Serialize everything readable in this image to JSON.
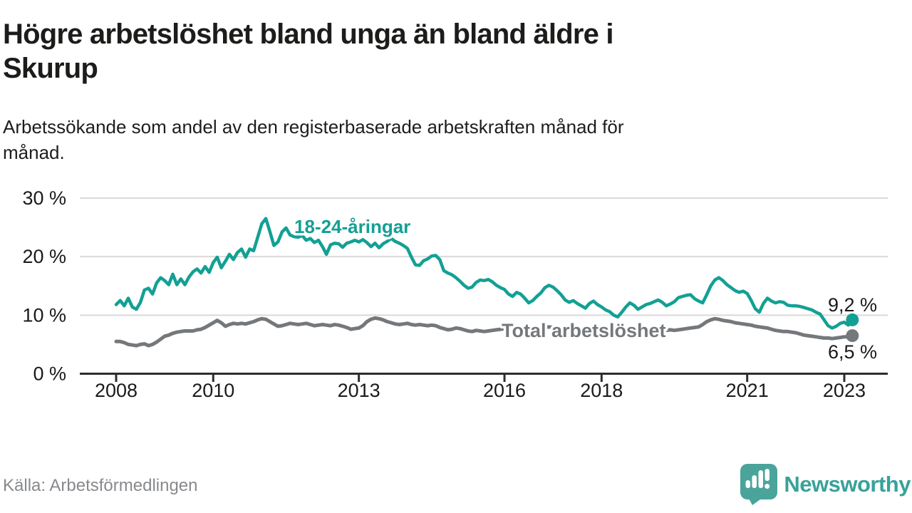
{
  "header": {
    "title": "Högre arbetslöshet bland unga än bland äldre i Skurup",
    "title_lines": [
      "Högre arbetslöshet bland unga än bland äldre i",
      "Skurup"
    ],
    "subtitle": "Arbetssökande som andel av den registerbaserade arbetskraften månad för månad.",
    "subtitle_lines": [
      "Arbetssökande som andel av den registerbaserade arbetskraften månad för",
      "månad."
    ]
  },
  "footer": {
    "source": "Källa: Arbetsförmedlingen",
    "brand": "Newsworthy"
  },
  "colors": {
    "youth_line": "#13a094",
    "total_line": "#75787b",
    "grid": "#d9d9d9",
    "axis": "#2d2d2d",
    "text": "#1a1a1a",
    "muted_text": "#87898c",
    "brand_teal": "#38a29a",
    "logo_bubble": "#4aa49c"
  },
  "chart_data": {
    "type": "line",
    "title": "Högre arbetslöshet bland unga än bland äldre i Skurup",
    "subtitle": "Arbetssökande som andel av den registerbaserade arbetskraften månad för månad.",
    "xlabel": "",
    "ylabel": "",
    "grid": "horizontal",
    "legend_position": "inline-labels",
    "ylim": [
      0,
      30
    ],
    "xlim": [
      2007.25,
      2023.9
    ],
    "yticks": [
      {
        "value": 0,
        "label": "0 %"
      },
      {
        "value": 10,
        "label": "10 %"
      },
      {
        "value": 20,
        "label": "20 %"
      },
      {
        "value": 30,
        "label": "30 %"
      }
    ],
    "xticks": [
      {
        "value": 2008,
        "label": "2008"
      },
      {
        "value": 2010,
        "label": "2010"
      },
      {
        "value": 2013,
        "label": "2013"
      },
      {
        "value": 2016,
        "label": "2016"
      },
      {
        "value": 2018,
        "label": "2018"
      },
      {
        "value": 2021,
        "label": "2021"
      },
      {
        "value": 2023,
        "label": "2023"
      }
    ],
    "series": [
      {
        "name": "18-24-åringar",
        "color": "#13a094",
        "end_label": "9,2 %",
        "end_value": 9.2,
        "start_year": 2008,
        "monthly": true,
        "values": [
          11.8,
          12.5,
          11.6,
          12.9,
          11.4,
          11.0,
          12.2,
          14.3,
          14.6,
          13.6,
          15.5,
          16.4,
          15.9,
          15.2,
          17.0,
          15.2,
          16.2,
          15.2,
          16.5,
          17.4,
          17.9,
          17.2,
          18.3,
          17.3,
          19.0,
          19.9,
          18.1,
          19.2,
          20.4,
          19.5,
          20.7,
          21.3,
          19.9,
          21.3,
          21.0,
          23.3,
          25.6,
          26.5,
          24.3,
          21.9,
          22.5,
          24.2,
          24.9,
          23.7,
          23.4,
          23.3,
          23.6,
          22.8,
          23.1,
          22.4,
          22.8,
          21.7,
          20.4,
          22.0,
          22.3,
          22.2,
          21.6,
          22.3,
          22.5,
          22.8,
          22.5,
          22.9,
          22.4,
          21.7,
          22.3,
          21.5,
          22.2,
          22.6,
          23.1,
          22.6,
          22.3,
          21.9,
          21.4,
          19.9,
          18.6,
          18.5,
          19.3,
          19.6,
          20.1,
          20.2,
          19.5,
          17.6,
          17.2,
          16.9,
          16.4,
          15.8,
          15.1,
          14.6,
          14.8,
          15.6,
          16.0,
          15.9,
          16.1,
          15.7,
          15.1,
          14.7,
          14.4,
          13.6,
          13.2,
          13.9,
          13.6,
          12.9,
          12.1,
          12.5,
          13.2,
          13.8,
          14.7,
          15.1,
          14.8,
          14.2,
          13.5,
          12.6,
          12.2,
          12.5,
          12.0,
          11.6,
          11.2,
          12.0,
          12.4,
          11.8,
          11.4,
          10.9,
          10.6,
          10.0,
          9.7,
          10.5,
          11.4,
          12.1,
          11.7,
          11.0,
          11.4,
          11.8,
          12.0,
          12.3,
          12.6,
          12.2,
          11.6,
          11.9,
          12.3,
          13.0,
          13.2,
          13.4,
          13.5,
          12.8,
          12.4,
          12.1,
          13.5,
          15.0,
          16.0,
          16.4,
          15.9,
          15.2,
          14.7,
          14.2,
          13.9,
          14.1,
          13.7,
          12.5,
          11.1,
          10.5,
          12.0,
          12.9,
          12.4,
          12.1,
          12.3,
          12.2,
          11.7,
          11.6,
          11.6,
          11.5,
          11.3,
          11.1,
          10.9,
          10.5,
          10.2,
          9.2,
          8.2,
          7.8,
          8.1,
          8.6,
          8.8,
          8.3,
          9.2
        ]
      },
      {
        "name": "Total arbetslöshet",
        "color": "#75787b",
        "end_label": "6,5 %",
        "end_value": 6.5,
        "start_year": 2008,
        "monthly": true,
        "values": [
          5.5,
          5.5,
          5.3,
          5.0,
          4.9,
          4.8,
          5.0,
          5.1,
          4.8,
          5.0,
          5.4,
          5.9,
          6.4,
          6.6,
          6.9,
          7.1,
          7.2,
          7.3,
          7.3,
          7.3,
          7.5,
          7.6,
          7.9,
          8.3,
          8.7,
          9.1,
          8.7,
          8.1,
          8.4,
          8.6,
          8.5,
          8.6,
          8.5,
          8.7,
          8.9,
          9.2,
          9.4,
          9.3,
          8.9,
          8.5,
          8.1,
          8.2,
          8.4,
          8.6,
          8.5,
          8.4,
          8.5,
          8.6,
          8.4,
          8.2,
          8.3,
          8.4,
          8.3,
          8.2,
          8.4,
          8.3,
          8.1,
          7.9,
          7.6,
          7.7,
          7.8,
          8.2,
          8.9,
          9.3,
          9.5,
          9.4,
          9.2,
          8.9,
          8.7,
          8.5,
          8.4,
          8.5,
          8.6,
          8.4,
          8.3,
          8.4,
          8.3,
          8.2,
          8.3,
          8.2,
          7.9,
          7.7,
          7.5,
          7.6,
          7.8,
          7.7,
          7.5,
          7.3,
          7.2,
          7.4,
          7.3,
          7.2,
          7.3,
          7.4,
          7.5,
          7.6,
          7.7,
          7.9,
          8.0,
          7.9,
          7.8,
          7.7,
          7.6,
          7.6,
          7.7,
          7.8,
          7.9,
          8.0,
          7.9,
          7.8,
          7.7,
          7.6,
          7.5,
          7.4,
          7.3,
          7.2,
          7.2,
          7.3,
          7.4,
          7.5,
          7.4,
          7.3,
          7.2,
          7.1,
          7.0,
          7.1,
          7.2,
          7.3,
          7.2,
          7.3,
          7.4,
          7.5,
          7.4,
          7.3,
          7.2,
          7.3,
          7.4,
          7.5,
          7.4,
          7.5,
          7.6,
          7.7,
          7.8,
          7.9,
          8.0,
          8.4,
          8.9,
          9.2,
          9.4,
          9.3,
          9.1,
          9.0,
          8.9,
          8.7,
          8.6,
          8.5,
          8.4,
          8.3,
          8.1,
          8.0,
          7.9,
          7.8,
          7.6,
          7.4,
          7.3,
          7.2,
          7.2,
          7.1,
          7.0,
          6.8,
          6.6,
          6.5,
          6.4,
          6.3,
          6.2,
          6.1,
          6.1,
          6.0,
          6.1,
          6.2,
          6.3,
          6.3,
          6.5
        ]
      }
    ]
  }
}
